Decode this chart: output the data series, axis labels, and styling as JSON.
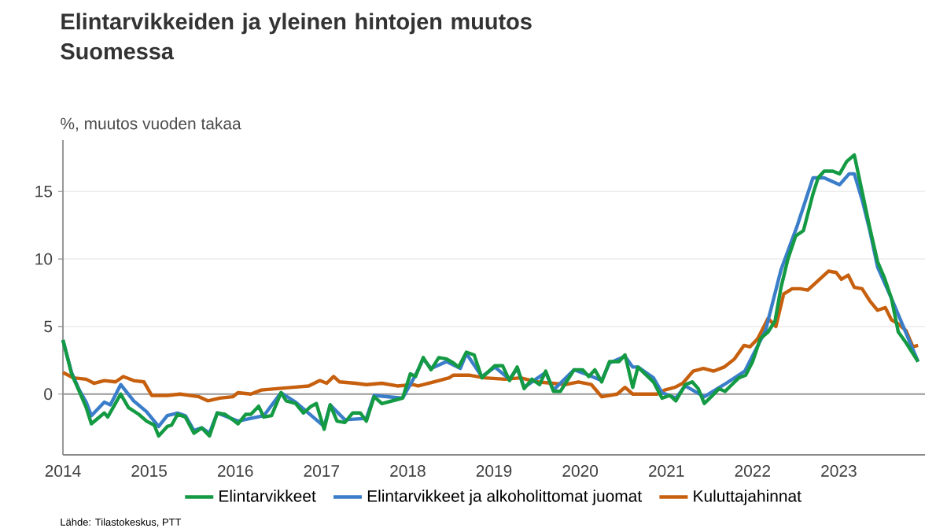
{
  "chart_data": {
    "type": "line",
    "title": "Elintarvikkeiden ja yleinen hintojen muutos Suomessa",
    "ylabel": "%, muutos vuoden takaa",
    "annotations": [
      "Lähde: Tilastokeskus, PTT"
    ],
    "xlim": [
      2014,
      2024
    ],
    "xticks": [
      2014,
      2015,
      2016,
      2017,
      2018,
      2019,
      2020,
      2021,
      2022,
      2023
    ],
    "ylim": [
      -4.5,
      18.8
    ],
    "yticks": [
      0,
      5,
      10,
      15
    ],
    "grid": "y",
    "legend": "bottom",
    "line_style": "solid",
    "ref_lines": [
      {
        "axis": "y",
        "value": 0,
        "color": "#999999"
      }
    ],
    "series": [
      {
        "name": "Elintarvikkeet",
        "color": "#139a43",
        "x": [
          2014.0,
          2014.1,
          2014.19,
          2014.27,
          2014.33,
          2014.48,
          2014.52,
          2014.67,
          2014.76,
          2014.88,
          2014.97,
          2015.06,
          2015.11,
          2015.21,
          2015.26,
          2015.33,
          2015.42,
          2015.52,
          2015.61,
          2015.7,
          2015.79,
          2015.88,
          2015.97,
          2016.03,
          2016.12,
          2016.18,
          2016.27,
          2016.33,
          2016.42,
          2016.53,
          2016.59,
          2016.7,
          2016.79,
          2016.88,
          2016.94,
          2017.03,
          2017.1,
          2017.18,
          2017.27,
          2017.36,
          2017.45,
          2017.52,
          2017.61,
          2017.7,
          2017.94,
          2018.03,
          2018.09,
          2018.18,
          2018.27,
          2018.36,
          2018.45,
          2018.53,
          2018.59,
          2018.68,
          2018.77,
          2018.86,
          2019.01,
          2019.1,
          2019.18,
          2019.27,
          2019.35,
          2019.44,
          2019.53,
          2019.6,
          2019.69,
          2019.77,
          2019.93,
          2020.03,
          2020.1,
          2020.17,
          2020.25,
          2020.34,
          2020.45,
          2020.52,
          2020.61,
          2020.67,
          2020.85,
          2020.95,
          2021.04,
          2021.11,
          2021.22,
          2021.3,
          2021.37,
          2021.44,
          2021.52,
          2021.61,
          2021.68,
          2021.76,
          2021.84,
          2021.92,
          2022.0,
          2022.09,
          2022.18,
          2022.26,
          2022.33,
          2022.41,
          2022.5,
          2022.59,
          2022.7,
          2022.76,
          2022.83,
          2022.93,
          2023.01,
          2023.09,
          2023.18,
          2023.27,
          2023.36,
          2023.45,
          2023.53,
          2023.61,
          2023.69,
          2023.78,
          2023.86,
          2023.92
        ],
        "values": [
          4.0,
          1.5,
          0.2,
          -1.0,
          -2.2,
          -1.4,
          -1.7,
          0.0,
          -1.0,
          -1.5,
          -2.0,
          -2.3,
          -3.1,
          -2.4,
          -2.3,
          -1.5,
          -1.7,
          -2.9,
          -2.5,
          -3.1,
          -1.4,
          -1.5,
          -1.9,
          -2.2,
          -1.5,
          -1.5,
          -0.9,
          -1.7,
          -1.6,
          0.1,
          -0.5,
          -0.7,
          -1.4,
          -0.9,
          -0.7,
          -2.6,
          -0.8,
          -2.0,
          -2.1,
          -1.4,
          -1.4,
          -2.0,
          -0.2,
          -0.7,
          -0.3,
          1.5,
          1.3,
          2.7,
          1.8,
          2.7,
          2.6,
          2.3,
          2.0,
          3.1,
          2.9,
          1.2,
          2.1,
          2.1,
          1.0,
          2.0,
          0.4,
          1.1,
          0.7,
          1.7,
          0.2,
          0.2,
          1.8,
          1.8,
          1.3,
          1.8,
          0.9,
          2.4,
          2.4,
          2.9,
          0.5,
          2.0,
          0.9,
          -0.3,
          -0.1,
          -0.5,
          0.7,
          0.9,
          0.4,
          -0.7,
          -0.2,
          0.4,
          0.2,
          0.7,
          1.2,
          1.4,
          2.4,
          4.1,
          4.6,
          5.4,
          7.9,
          10.0,
          11.7,
          12.1,
          14.8,
          16.0,
          16.5,
          16.5,
          16.3,
          17.2,
          17.7,
          15.0,
          12.3,
          9.8,
          8.6,
          7.1,
          4.6,
          3.8,
          3.0,
          2.4
        ]
      },
      {
        "name": "Elintarvikkeet ja alkoholittomat juomat",
        "color": "#3a7dc9",
        "x": [
          2014.0,
          2014.1,
          2014.19,
          2014.27,
          2014.33,
          2014.48,
          2014.55,
          2014.67,
          2014.82,
          2014.97,
          2015.11,
          2015.21,
          2015.33,
          2015.42,
          2015.52,
          2015.61,
          2015.7,
          2015.79,
          2016.03,
          2016.33,
          2016.53,
          2016.7,
          2017.03,
          2017.1,
          2017.27,
          2017.52,
          2017.61,
          2017.94,
          2018.09,
          2018.18,
          2018.27,
          2018.45,
          2018.61,
          2018.68,
          2018.86,
          2019.01,
          2019.18,
          2019.27,
          2019.35,
          2019.6,
          2019.69,
          2019.93,
          2020.1,
          2020.25,
          2020.34,
          2020.52,
          2020.61,
          2020.67,
          2020.85,
          2020.95,
          2021.11,
          2021.22,
          2021.44,
          2021.67,
          2021.91,
          2022.15,
          2022.33,
          2022.52,
          2022.7,
          2022.83,
          2023.01,
          2023.12,
          2023.18,
          2023.27,
          2023.36,
          2023.45,
          2023.61,
          2023.92
        ],
        "values": [
          4.0,
          1.6,
          0.3,
          -0.6,
          -1.6,
          -0.6,
          -0.8,
          0.7,
          -0.5,
          -1.3,
          -2.4,
          -1.6,
          -1.4,
          -1.6,
          -2.7,
          -2.5,
          -2.9,
          -1.4,
          -2.0,
          -1.6,
          0.1,
          -0.6,
          -2.4,
          -0.8,
          -1.9,
          -1.8,
          -0.1,
          -0.3,
          1.4,
          2.6,
          1.9,
          2.4,
          1.9,
          3.0,
          1.3,
          2.0,
          1.1,
          1.9,
          0.5,
          1.6,
          0.3,
          1.8,
          1.4,
          1.0,
          2.3,
          2.8,
          2.0,
          2.0,
          1.2,
          0.1,
          -0.3,
          0.6,
          -0.2,
          0.7,
          1.7,
          4.7,
          9.2,
          12.5,
          16.0,
          16.0,
          15.5,
          16.3,
          16.3,
          14.4,
          12.1,
          9.4,
          7.1,
          2.4
        ]
      },
      {
        "name": "Kuluttajahinnat",
        "color": "#c7600e",
        "x": [
          2014.0,
          2014.12,
          2014.27,
          2014.36,
          2014.48,
          2014.61,
          2014.7,
          2014.82,
          2014.94,
          2015.03,
          2015.21,
          2015.36,
          2015.58,
          2015.68,
          2015.82,
          2015.97,
          2016.03,
          2016.18,
          2016.3,
          2016.48,
          2016.67,
          2016.85,
          2016.98,
          2017.06,
          2017.14,
          2017.21,
          2017.39,
          2017.52,
          2017.7,
          2017.88,
          2018.06,
          2018.12,
          2018.3,
          2018.48,
          2018.53,
          2018.71,
          2018.89,
          2019.13,
          2019.31,
          2019.5,
          2019.68,
          2019.83,
          2019.98,
          2020.13,
          2020.25,
          2020.43,
          2020.52,
          2020.61,
          2020.89,
          2020.98,
          2021.1,
          2021.19,
          2021.31,
          2021.43,
          2021.55,
          2021.67,
          2021.79,
          2021.9,
          2021.97,
          2022.06,
          2022.18,
          2022.27,
          2022.36,
          2022.46,
          2022.55,
          2022.64,
          2022.76,
          2022.88,
          2022.97,
          2023.03,
          2023.11,
          2023.18,
          2023.27,
          2023.36,
          2023.45,
          2023.54,
          2023.61,
          2023.69,
          2023.78,
          2023.86,
          2023.92
        ],
        "values": [
          1.6,
          1.2,
          1.1,
          0.8,
          1.0,
          0.9,
          1.3,
          1.0,
          0.9,
          -0.1,
          -0.1,
          0.0,
          -0.2,
          -0.5,
          -0.3,
          -0.2,
          0.1,
          0.0,
          0.3,
          0.4,
          0.5,
          0.6,
          1.0,
          0.8,
          1.3,
          0.9,
          0.8,
          0.7,
          0.8,
          0.6,
          0.7,
          0.6,
          0.9,
          1.2,
          1.4,
          1.4,
          1.2,
          1.1,
          1.2,
          0.9,
          0.8,
          0.7,
          0.9,
          0.7,
          -0.2,
          0.0,
          0.5,
          0.0,
          0.0,
          0.3,
          0.5,
          0.8,
          1.7,
          1.9,
          1.7,
          2.0,
          2.6,
          3.6,
          3.5,
          4.1,
          5.6,
          5.0,
          7.4,
          7.8,
          7.8,
          7.7,
          8.4,
          9.1,
          9.0,
          8.5,
          8.8,
          7.9,
          7.8,
          6.9,
          6.2,
          6.4,
          5.5,
          5.2,
          4.7,
          3.5,
          3.6
        ]
      }
    ]
  }
}
